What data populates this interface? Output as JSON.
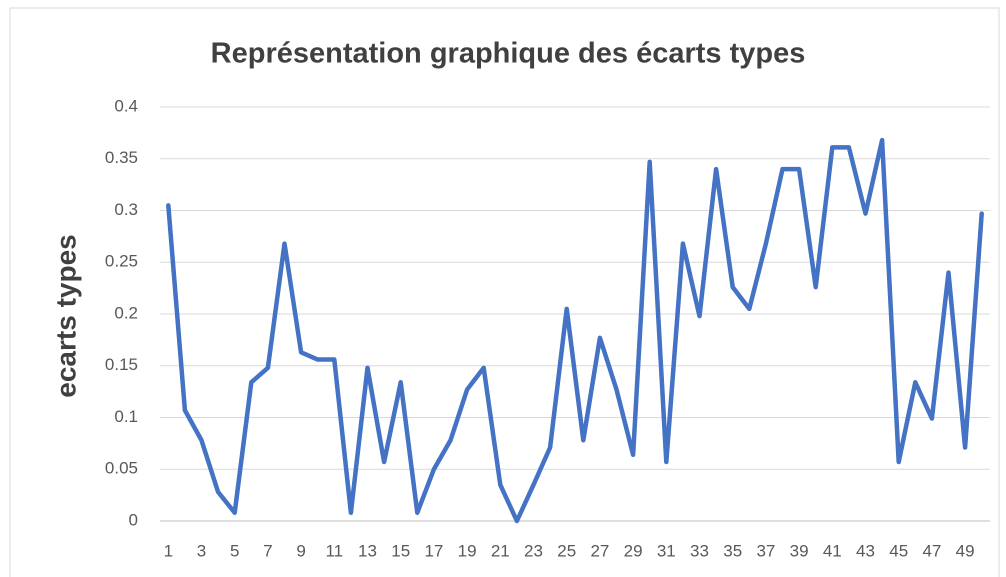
{
  "chart_data": {
    "type": "line",
    "title": "Représentation graphique des écarts types",
    "y_label": "ecarts  types",
    "categories": [
      "1",
      null,
      "3",
      null,
      "5",
      null,
      "7",
      null,
      "9",
      null,
      "11",
      null,
      "13",
      null,
      "15",
      null,
      "17",
      null,
      "19",
      null,
      "21",
      null,
      "23",
      null,
      "25",
      null,
      "27",
      null,
      "29",
      null,
      "31",
      null,
      "33",
      null,
      "35",
      null,
      "37",
      null,
      "39",
      null,
      "41",
      null,
      "43",
      null,
      "45",
      null,
      "47",
      null,
      "49",
      null
    ],
    "series": [
      {
        "name": "ecarts types",
        "color": "#4472c4",
        "values": [
          0.305,
          0.107,
          0.078,
          0.028,
          0.008,
          0.134,
          0.148,
          0.268,
          0.163,
          0.156,
          0.156,
          0.008,
          0.148,
          0.057,
          0.134,
          0.008,
          0.05,
          0.078,
          0.127,
          0.148,
          0.035,
          0.0,
          0.035,
          0.071,
          0.205,
          0.078,
          0.177,
          0.127,
          0.064,
          0.347,
          0.057,
          0.268,
          0.198,
          0.34,
          0.226,
          0.205,
          0.268,
          0.34,
          0.34,
          0.226,
          0.361,
          0.361,
          0.297,
          0.368,
          0.057,
          0.134,
          0.099,
          0.24,
          0.071,
          0.297
        ]
      }
    ],
    "ylim": [
      0,
      0.4
    ],
    "yticks": [
      0,
      0.05,
      0.1,
      0.15,
      0.2,
      0.25,
      0.3,
      0.35,
      0.4
    ],
    "grid": true
  }
}
